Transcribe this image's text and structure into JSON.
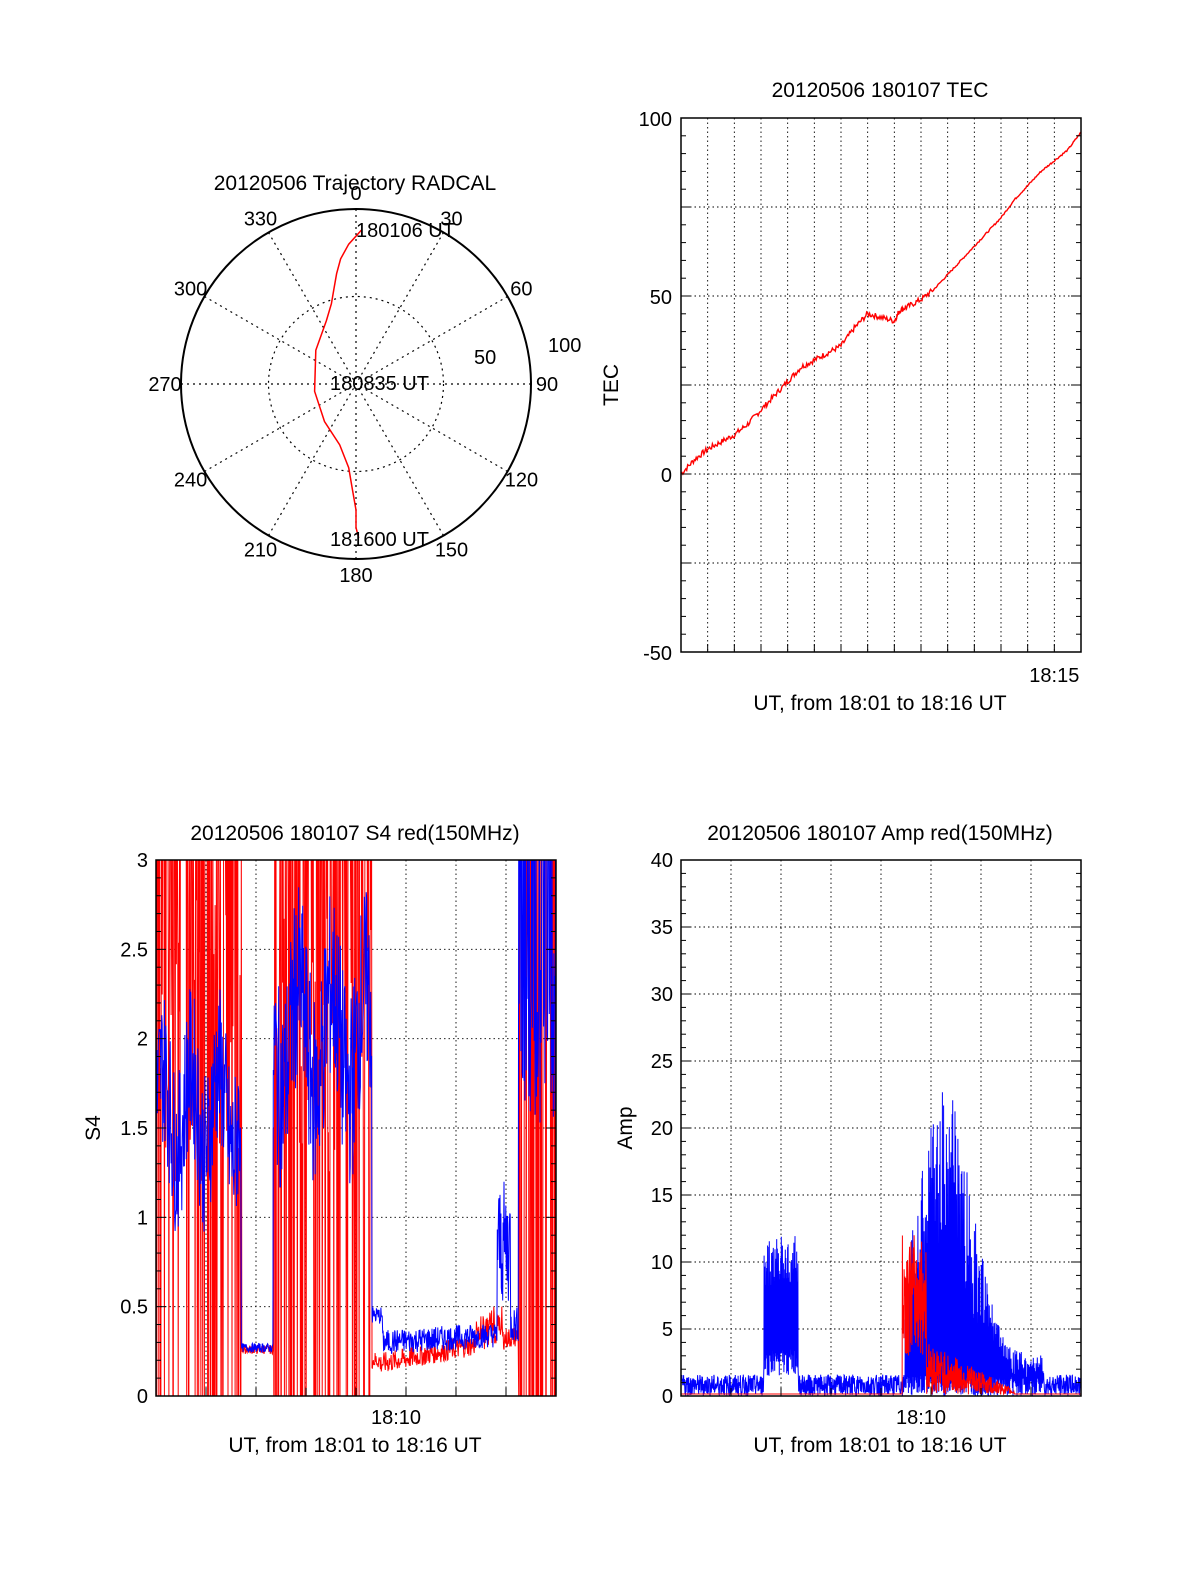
{
  "chart_data": [
    {
      "type": "polar",
      "title": "20120506 Trajectory RADCAL",
      "angle_labels": [
        "0",
        "30",
        "60",
        "90",
        "120",
        "150",
        "180",
        "210",
        "240",
        "270",
        "300",
        "330"
      ],
      "radius_labels": [
        "50",
        "100"
      ],
      "rlim": [
        0,
        100
      ],
      "grid": true,
      "colors": {
        "trajectory": "#ff0000"
      },
      "annotations": [
        {
          "text": "180106 UT",
          "angle_deg": 2,
          "r": 90
        },
        {
          "text": "180835 UT",
          "angle_deg": 0,
          "r": 0
        },
        {
          "text": "181600 UT",
          "angle_deg": 182,
          "r": 88
        }
      ],
      "series": [
        {
          "angle_deg": [
            2,
            -3,
            -7,
            -10,
            -13,
            -17,
            -25,
            -50,
            -100,
            -140,
            -165,
            -175,
            -178,
            -180,
            -180,
            -181
          ],
          "r": [
            88,
            80,
            72,
            64,
            56,
            48,
            40,
            30,
            24,
            28,
            36,
            48,
            60,
            72,
            82,
            88
          ]
        }
      ]
    },
    {
      "type": "line",
      "title": "20120506 180107 TEC",
      "xlabel": "UT, from 18:01 to 18:16 UT",
      "ylabel": "TEC",
      "xlim": [
        0,
        15
      ],
      "ylim": [
        -50,
        100
      ],
      "yticks": [
        "-50",
        "0",
        "50",
        "100"
      ],
      "xticks": [
        {
          "label": "18:15",
          "value": 14
        }
      ],
      "grid": true,
      "colors": {
        "tec": "#ff0000"
      },
      "series": [
        {
          "x": [
            0,
            0.5,
            1,
            1.5,
            2,
            2.5,
            3,
            3.5,
            4,
            4.5,
            5,
            5.5,
            6,
            6.5,
            7,
            7.5,
            8,
            8.2,
            8.5,
            9,
            9.5,
            10,
            10.5,
            11,
            11.5,
            12,
            12.5,
            13,
            13.5,
            14,
            14.5,
            15
          ],
          "y": [
            0,
            4,
            7,
            9,
            11,
            14,
            18,
            22,
            26,
            30,
            32,
            34,
            36,
            41,
            45,
            44,
            43,
            46,
            47,
            49,
            52,
            56,
            60,
            64,
            68,
            72,
            77,
            81,
            85,
            88,
            91,
            96
          ]
        }
      ]
    },
    {
      "type": "line",
      "title": "20120506 180107 S4 red(150MHz)",
      "xlabel": "UT, from 18:01 to 18:16 UT",
      "ylabel": "S4",
      "xlim": [
        0,
        15
      ],
      "ylim": [
        0,
        3
      ],
      "yticks": [
        "0",
        "0.5",
        "1",
        "1.5",
        "2",
        "2.5",
        "3"
      ],
      "xticks": [
        {
          "label": "18:10",
          "value": 9
        }
      ],
      "grid": true,
      "colors": {
        "red": "#ff0000",
        "blue": "#0000ff"
      }
    },
    {
      "type": "line",
      "title": "20120506 180107 Amp red(150MHz)",
      "xlabel": "UT, from 18:01 to 18:16 UT",
      "ylabel": "Amp",
      "xlim": [
        0,
        15
      ],
      "ylim": [
        0,
        40
      ],
      "yticks": [
        "0",
        "5",
        "10",
        "15",
        "20",
        "25",
        "30",
        "35",
        "40"
      ],
      "xticks": [
        {
          "label": "18:10",
          "value": 9
        }
      ],
      "grid": true,
      "colors": {
        "red": "#ff0000",
        "blue": "#0000ff"
      }
    }
  ]
}
